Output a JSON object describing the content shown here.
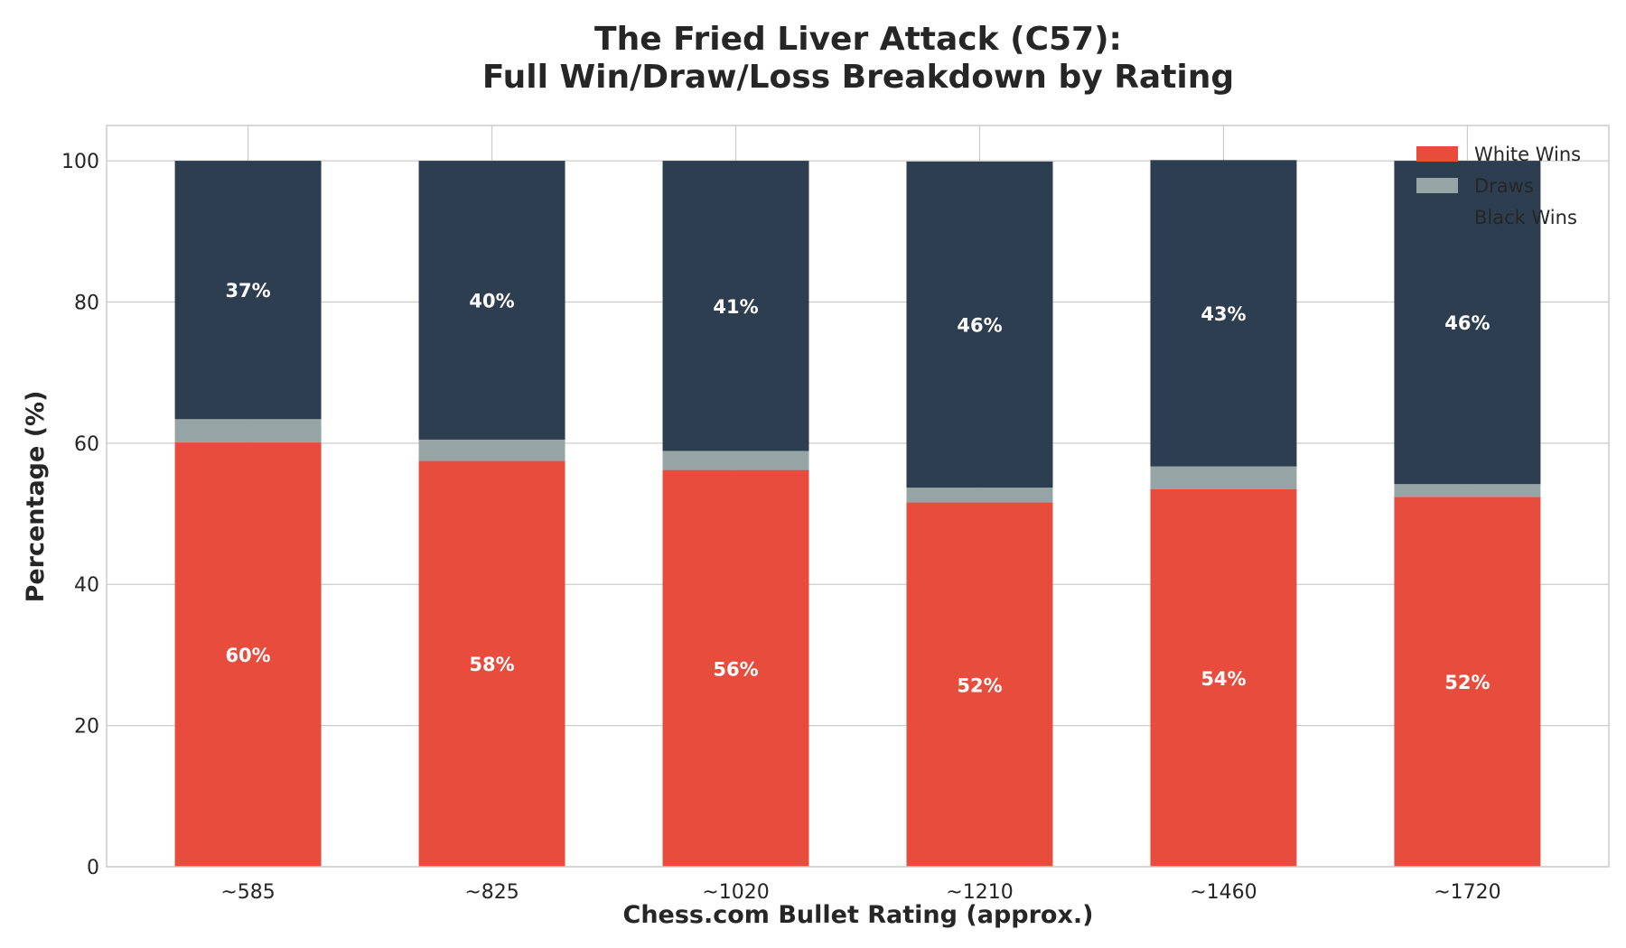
{
  "chart_data": {
    "type": "bar",
    "stacked": true,
    "title": "The Fried Liver Attack (C57):",
    "subtitle": "Full Win/Draw/Loss Breakdown by Rating",
    "xlabel": "Chess.com Bullet Rating (approx.)",
    "ylabel": "Percentage (%)",
    "categories": [
      "~585",
      "~825",
      "~1020",
      "~1210",
      "~1460",
      "~1720"
    ],
    "ylim": [
      0,
      105
    ],
    "yticks": [
      "0",
      "20",
      "40",
      "60",
      "80",
      "100"
    ],
    "grid": true,
    "legend_position": "top-right",
    "series": [
      {
        "name": "White Wins",
        "color": "#e84c3d",
        "values": [
          60.1,
          57.5,
          56.2,
          51.6,
          53.5,
          52.4
        ],
        "labels": [
          "60%",
          "58%",
          "56%",
          "52%",
          "54%",
          "52%"
        ]
      },
      {
        "name": "Draws",
        "color": "#95a5a5",
        "values": [
          3.3,
          3.0,
          2.7,
          2.1,
          3.2,
          1.8
        ],
        "labels": [
          "",
          "",
          "",
          "",
          "",
          ""
        ]
      },
      {
        "name": "Black Wins",
        "color": "#2d3e50",
        "values": [
          36.6,
          39.5,
          41.1,
          46.2,
          43.4,
          45.8
        ],
        "labels": [
          "37%",
          "40%",
          "41%",
          "46%",
          "43%",
          "46%"
        ]
      }
    ]
  }
}
